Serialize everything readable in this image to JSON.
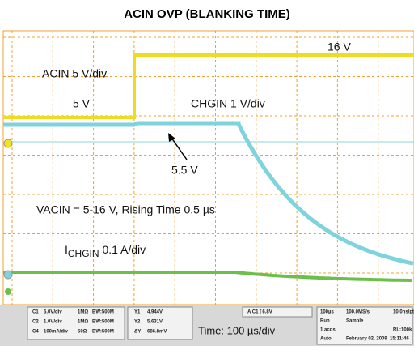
{
  "header": {
    "title": "ACIN OVP (BLANKING TIME)"
  },
  "screen": {
    "labels": {
      "high": "16 V",
      "acin": "ACIN 5 V/div",
      "low": "5 V",
      "chgin": "CHGIN 1 V/div",
      "plateau": "5.5 V",
      "condition": "VACIN = 5-16 V, Rising Time 0.5 µs",
      "ichgin_i": "I",
      "ichgin_sub": "CHGIN",
      "ichgin_rest": " 0.1 A/div",
      "time": "Time: 100 µs/div"
    }
  },
  "readout": {
    "channels": [
      [
        "C1",
        "5.0V/div",
        "1MΩ",
        "BW:500M"
      ],
      [
        "C2",
        "1.0V/div",
        "1MΩ",
        "BW:500M"
      ],
      [
        "C4",
        "100mA/div",
        "50Ω",
        "BW:500M"
      ]
    ],
    "cursors": [
      [
        "Y1",
        "4.944V"
      ],
      [
        "Y2",
        "5.631V"
      ],
      [
        "ΔY",
        "686.8mV"
      ]
    ],
    "trigger": "A  C1  ∫  6.8V",
    "acq": [
      [
        "100µs",
        "100.0MS/s",
        "10.0ns/pt"
      ],
      [
        "Run",
        "Sample",
        ""
      ],
      [
        "1 acqs",
        "",
        "RL:100k"
      ],
      [
        "Auto",
        "February 02, 2009",
        "15:11:46"
      ]
    ]
  }
}
